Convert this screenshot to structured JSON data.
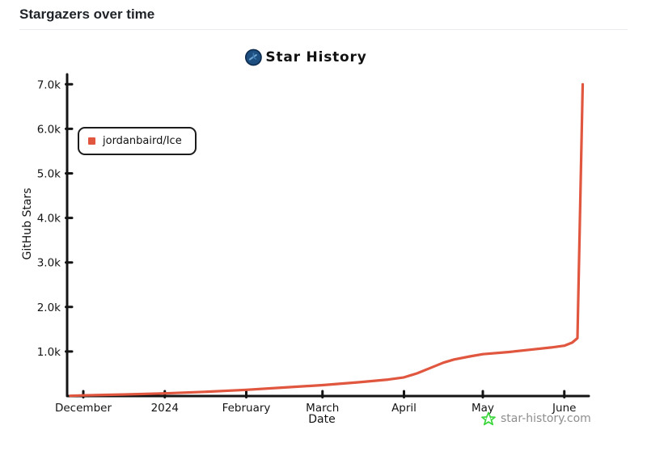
{
  "page": {
    "title": "Stargazers over time"
  },
  "chart": {
    "brand_title": "Star History",
    "legend_label": "jordanbaird/Ice",
    "watermark_text": "star-history.com",
    "colors": {
      "series_red": "#e0563f",
      "watermark_green": "#3bd63b",
      "logo_blue": "#1d4e80",
      "axis_black": "#141414",
      "watermark_gray": "#8e8e8e"
    }
  },
  "chart_data": {
    "type": "line",
    "title": "Star History",
    "xlabel": "Date",
    "ylabel": "GitHub Stars",
    "legend_position": "top-left",
    "grid": false,
    "xlim": [
      "2023-11-25",
      "2024-06-12"
    ],
    "ylim": [
      0,
      7200
    ],
    "x_ticks": [
      {
        "label": "December",
        "date": "2023-12-01"
      },
      {
        "label": "2024",
        "date": "2024-01-01"
      },
      {
        "label": "February",
        "date": "2024-02-01"
      },
      {
        "label": "March",
        "date": "2024-03-01"
      },
      {
        "label": "April",
        "date": "2024-04-01"
      },
      {
        "label": "May",
        "date": "2024-05-01"
      },
      {
        "label": "June",
        "date": "2024-06-01"
      }
    ],
    "y_ticks": [
      {
        "label": "1.0k",
        "value": 1000
      },
      {
        "label": "2.0k",
        "value": 2000
      },
      {
        "label": "3.0k",
        "value": 3000
      },
      {
        "label": "4.0k",
        "value": 4000
      },
      {
        "label": "5.0k",
        "value": 5000
      },
      {
        "label": "6.0k",
        "value": 6000
      },
      {
        "label": "7.0k",
        "value": 7000
      }
    ],
    "series": [
      {
        "name": "jordanbaird/Ice",
        "color": "#e0563f",
        "points": [
          [
            "2023-11-26",
            5
          ],
          [
            "2023-12-01",
            15
          ],
          [
            "2023-12-16",
            35
          ],
          [
            "2024-01-01",
            60
          ],
          [
            "2024-01-16",
            95
          ],
          [
            "2024-02-01",
            140
          ],
          [
            "2024-02-15",
            190
          ],
          [
            "2024-03-01",
            245
          ],
          [
            "2024-03-15",
            310
          ],
          [
            "2024-03-26",
            370
          ],
          [
            "2024-04-01",
            420
          ],
          [
            "2024-04-06",
            510
          ],
          [
            "2024-04-11",
            630
          ],
          [
            "2024-04-16",
            750
          ],
          [
            "2024-04-20",
            820
          ],
          [
            "2024-04-26",
            890
          ],
          [
            "2024-05-01",
            940
          ],
          [
            "2024-05-11",
            990
          ],
          [
            "2024-05-19",
            1040
          ],
          [
            "2024-05-27",
            1090
          ],
          [
            "2024-06-01",
            1130
          ],
          [
            "2024-06-04",
            1200
          ],
          [
            "2024-06-06",
            1300
          ],
          [
            "2024-06-08",
            7000
          ]
        ]
      }
    ]
  }
}
